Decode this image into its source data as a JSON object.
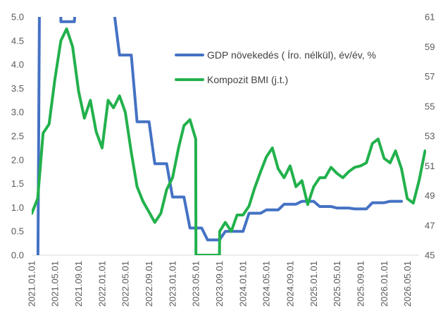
{
  "chart_data": {
    "type": "line",
    "title": "",
    "xlabel": "",
    "ylabel_left": "",
    "ylabel_right": "",
    "y_left_range": [
      0,
      5
    ],
    "y_left_ticks": [
      "0.0",
      "0.5",
      "1.0",
      "1.5",
      "2.0",
      "2.5",
      "3.0",
      "3.5",
      "4.0",
      "4.5",
      "5.0"
    ],
    "y_right_range": [
      45,
      61
    ],
    "y_right_ticks": [
      "45",
      "47",
      "49",
      "51",
      "53",
      "55",
      "57",
      "59",
      "61"
    ],
    "x_range": [
      "2021-01-01",
      "2026-07-01"
    ],
    "x_tick_labels": [
      "2021.01.01",
      "2021.05.01",
      "2021.09.01",
      "2022.01.01",
      "2022.05.01",
      "2022.09.01",
      "2023.01.01",
      "2023.05.01",
      "2023.09.01",
      "2024.01.01",
      "2024.05.01",
      "2024.09.01",
      "2025.01.01",
      "2025.05.01",
      "2025.09.01",
      "2026.01.01",
      "2026.05.01"
    ],
    "grid": false,
    "legend_position": "top-right",
    "series": [
      {
        "name": "GDP növekedés ( Íro. nélkül), év/év, %",
        "axis": "left",
        "color": "#4472C4",
        "points": [
          [
            "2021-02-01",
            -1.0
          ],
          [
            "2021-02-10",
            5.2
          ],
          [
            "2021-03-01",
            5.3
          ],
          [
            "2021-06-01",
            5.3
          ],
          [
            "2021-06-01",
            4.9
          ],
          [
            "2021-08-10",
            4.9
          ],
          [
            "2021-08-15",
            5.2
          ],
          [
            "2022-03-01",
            5.2
          ],
          [
            "2022-04-01",
            4.2
          ],
          [
            "2022-06-01",
            4.2
          ],
          [
            "2022-07-01",
            2.8
          ],
          [
            "2022-09-01",
            2.8
          ],
          [
            "2022-10-01",
            1.92
          ],
          [
            "2022-12-01",
            1.92
          ],
          [
            "2023-01-01",
            1.22
          ],
          [
            "2023-03-01",
            1.22
          ],
          [
            "2023-04-01",
            0.57
          ],
          [
            "2023-06-01",
            0.57
          ],
          [
            "2023-07-01",
            0.32
          ],
          [
            "2023-09-01",
            0.32
          ],
          [
            "2023-10-01",
            0.5
          ],
          [
            "2024-01-01",
            0.5
          ],
          [
            "2024-02-01",
            0.88
          ],
          [
            "2024-04-01",
            0.88
          ],
          [
            "2024-05-01",
            0.95
          ],
          [
            "2024-07-01",
            0.95
          ],
          [
            "2024-08-01",
            1.07
          ],
          [
            "2024-10-01",
            1.07
          ],
          [
            "2024-11-01",
            1.13
          ],
          [
            "2025-01-01",
            1.13
          ],
          [
            "2025-02-01",
            1.02
          ],
          [
            "2025-04-01",
            1.02
          ],
          [
            "2025-05-01",
            0.99
          ],
          [
            "2025-07-01",
            0.99
          ],
          [
            "2025-08-01",
            0.97
          ],
          [
            "2025-10-01",
            0.97
          ],
          [
            "2025-11-01",
            1.1
          ],
          [
            "2026-01-01",
            1.1
          ],
          [
            "2026-02-01",
            1.13
          ],
          [
            "2026-04-01",
            1.13
          ]
        ]
      },
      {
        "name": "Kompozit BMI (j.t.)",
        "axis": "right",
        "color": "#22B14C",
        "points": [
          [
            "2021-01-01",
            47.8
          ],
          [
            "2021-02-01",
            48.8
          ],
          [
            "2021-03-01",
            53.2
          ],
          [
            "2021-04-01",
            53.8
          ],
          [
            "2021-05-01",
            56.8
          ],
          [
            "2021-06-01",
            59.4
          ],
          [
            "2021-07-01",
            60.2
          ],
          [
            "2021-08-01",
            59.0
          ],
          [
            "2021-09-01",
            56.0
          ],
          [
            "2021-10-01",
            54.2
          ],
          [
            "2021-11-01",
            55.4
          ],
          [
            "2021-12-01",
            53.3
          ],
          [
            "2022-01-01",
            52.2
          ],
          [
            "2022-02-01",
            55.4
          ],
          [
            "2022-03-01",
            54.9
          ],
          [
            "2022-04-01",
            55.7
          ],
          [
            "2022-05-01",
            54.6
          ],
          [
            "2022-06-01",
            51.9
          ],
          [
            "2022-07-01",
            49.6
          ],
          [
            "2022-08-01",
            48.6
          ],
          [
            "2022-09-01",
            47.9
          ],
          [
            "2022-10-01",
            47.2
          ],
          [
            "2022-11-01",
            47.8
          ],
          [
            "2022-12-01",
            49.4
          ],
          [
            "2023-01-01",
            50.2
          ],
          [
            "2023-02-01",
            52.2
          ],
          [
            "2023-03-01",
            53.7
          ],
          [
            "2023-04-01",
            54.1
          ],
          [
            "2023-05-01",
            52.8
          ],
          [
            "2023-05-02",
            45.0
          ],
          [
            "2023-09-01",
            45.0
          ],
          [
            "2023-09-02",
            46.6
          ],
          [
            "2023-10-01",
            47.2
          ],
          [
            "2023-11-01",
            46.6
          ],
          [
            "2023-12-01",
            47.7
          ],
          [
            "2024-01-01",
            47.7
          ],
          [
            "2024-02-01",
            48.3
          ],
          [
            "2024-03-01",
            49.5
          ],
          [
            "2024-04-01",
            50.6
          ],
          [
            "2024-05-01",
            51.6
          ],
          [
            "2024-06-01",
            52.2
          ],
          [
            "2024-07-01",
            50.8
          ],
          [
            "2024-08-01",
            50.2
          ],
          [
            "2024-09-01",
            51.0
          ],
          [
            "2024-10-01",
            49.6
          ],
          [
            "2024-11-01",
            50.0
          ],
          [
            "2024-12-01",
            48.4
          ],
          [
            "2025-01-01",
            49.6
          ],
          [
            "2025-02-01",
            50.2
          ],
          [
            "2025-03-01",
            50.2
          ],
          [
            "2025-04-01",
            50.9
          ],
          [
            "2025-05-01",
            50.5
          ],
          [
            "2025-06-01",
            50.2
          ],
          [
            "2025-07-01",
            50.6
          ],
          [
            "2025-08-01",
            50.9
          ],
          [
            "2025-09-01",
            51.0
          ],
          [
            "2025-10-01",
            51.2
          ],
          [
            "2025-11-01",
            52.5
          ],
          [
            "2025-12-01",
            52.8
          ],
          [
            "2026-01-01",
            51.5
          ],
          [
            "2026-02-01",
            51.2
          ],
          [
            "2026-03-01",
            52.0
          ],
          [
            "2026-04-01",
            50.8
          ],
          [
            "2026-05-01",
            48.8
          ],
          [
            "2026-06-01",
            48.5
          ],
          [
            "2026-07-01",
            50.0
          ],
          [
            "2026-08-01",
            52.0
          ]
        ]
      }
    ]
  }
}
